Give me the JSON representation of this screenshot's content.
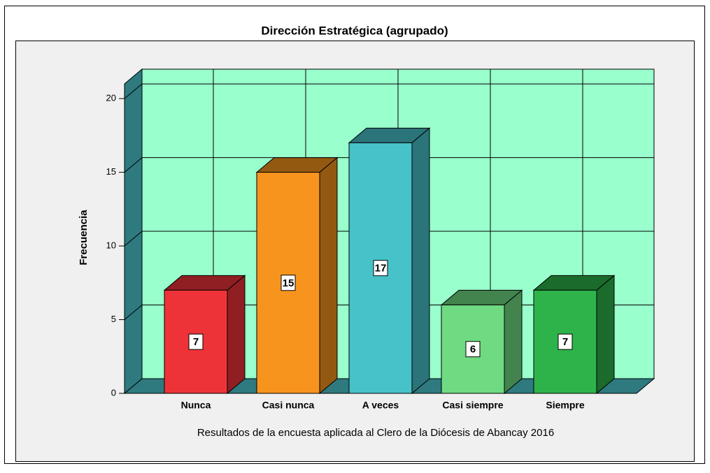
{
  "chart_data": {
    "type": "bar3d",
    "title": "Dirección Estratégica (agrupado)",
    "ylabel": "Frecuencia",
    "xlabel": "Resultados de la encuesta aplicada al Clero de la Diócesis de Abancay 2016",
    "categories": [
      "Nunca",
      "Casi nunca",
      "A veces",
      "Casi siempre",
      "Siempre"
    ],
    "values": [
      7,
      15,
      17,
      6,
      7
    ],
    "colors": [
      "#ee3338",
      "#f7941d",
      "#47c2c9",
      "#6fda82",
      "#2db34a"
    ],
    "ylim": [
      0,
      21
    ],
    "yticks": [
      0,
      5,
      10,
      15,
      20
    ],
    "grid": true
  }
}
